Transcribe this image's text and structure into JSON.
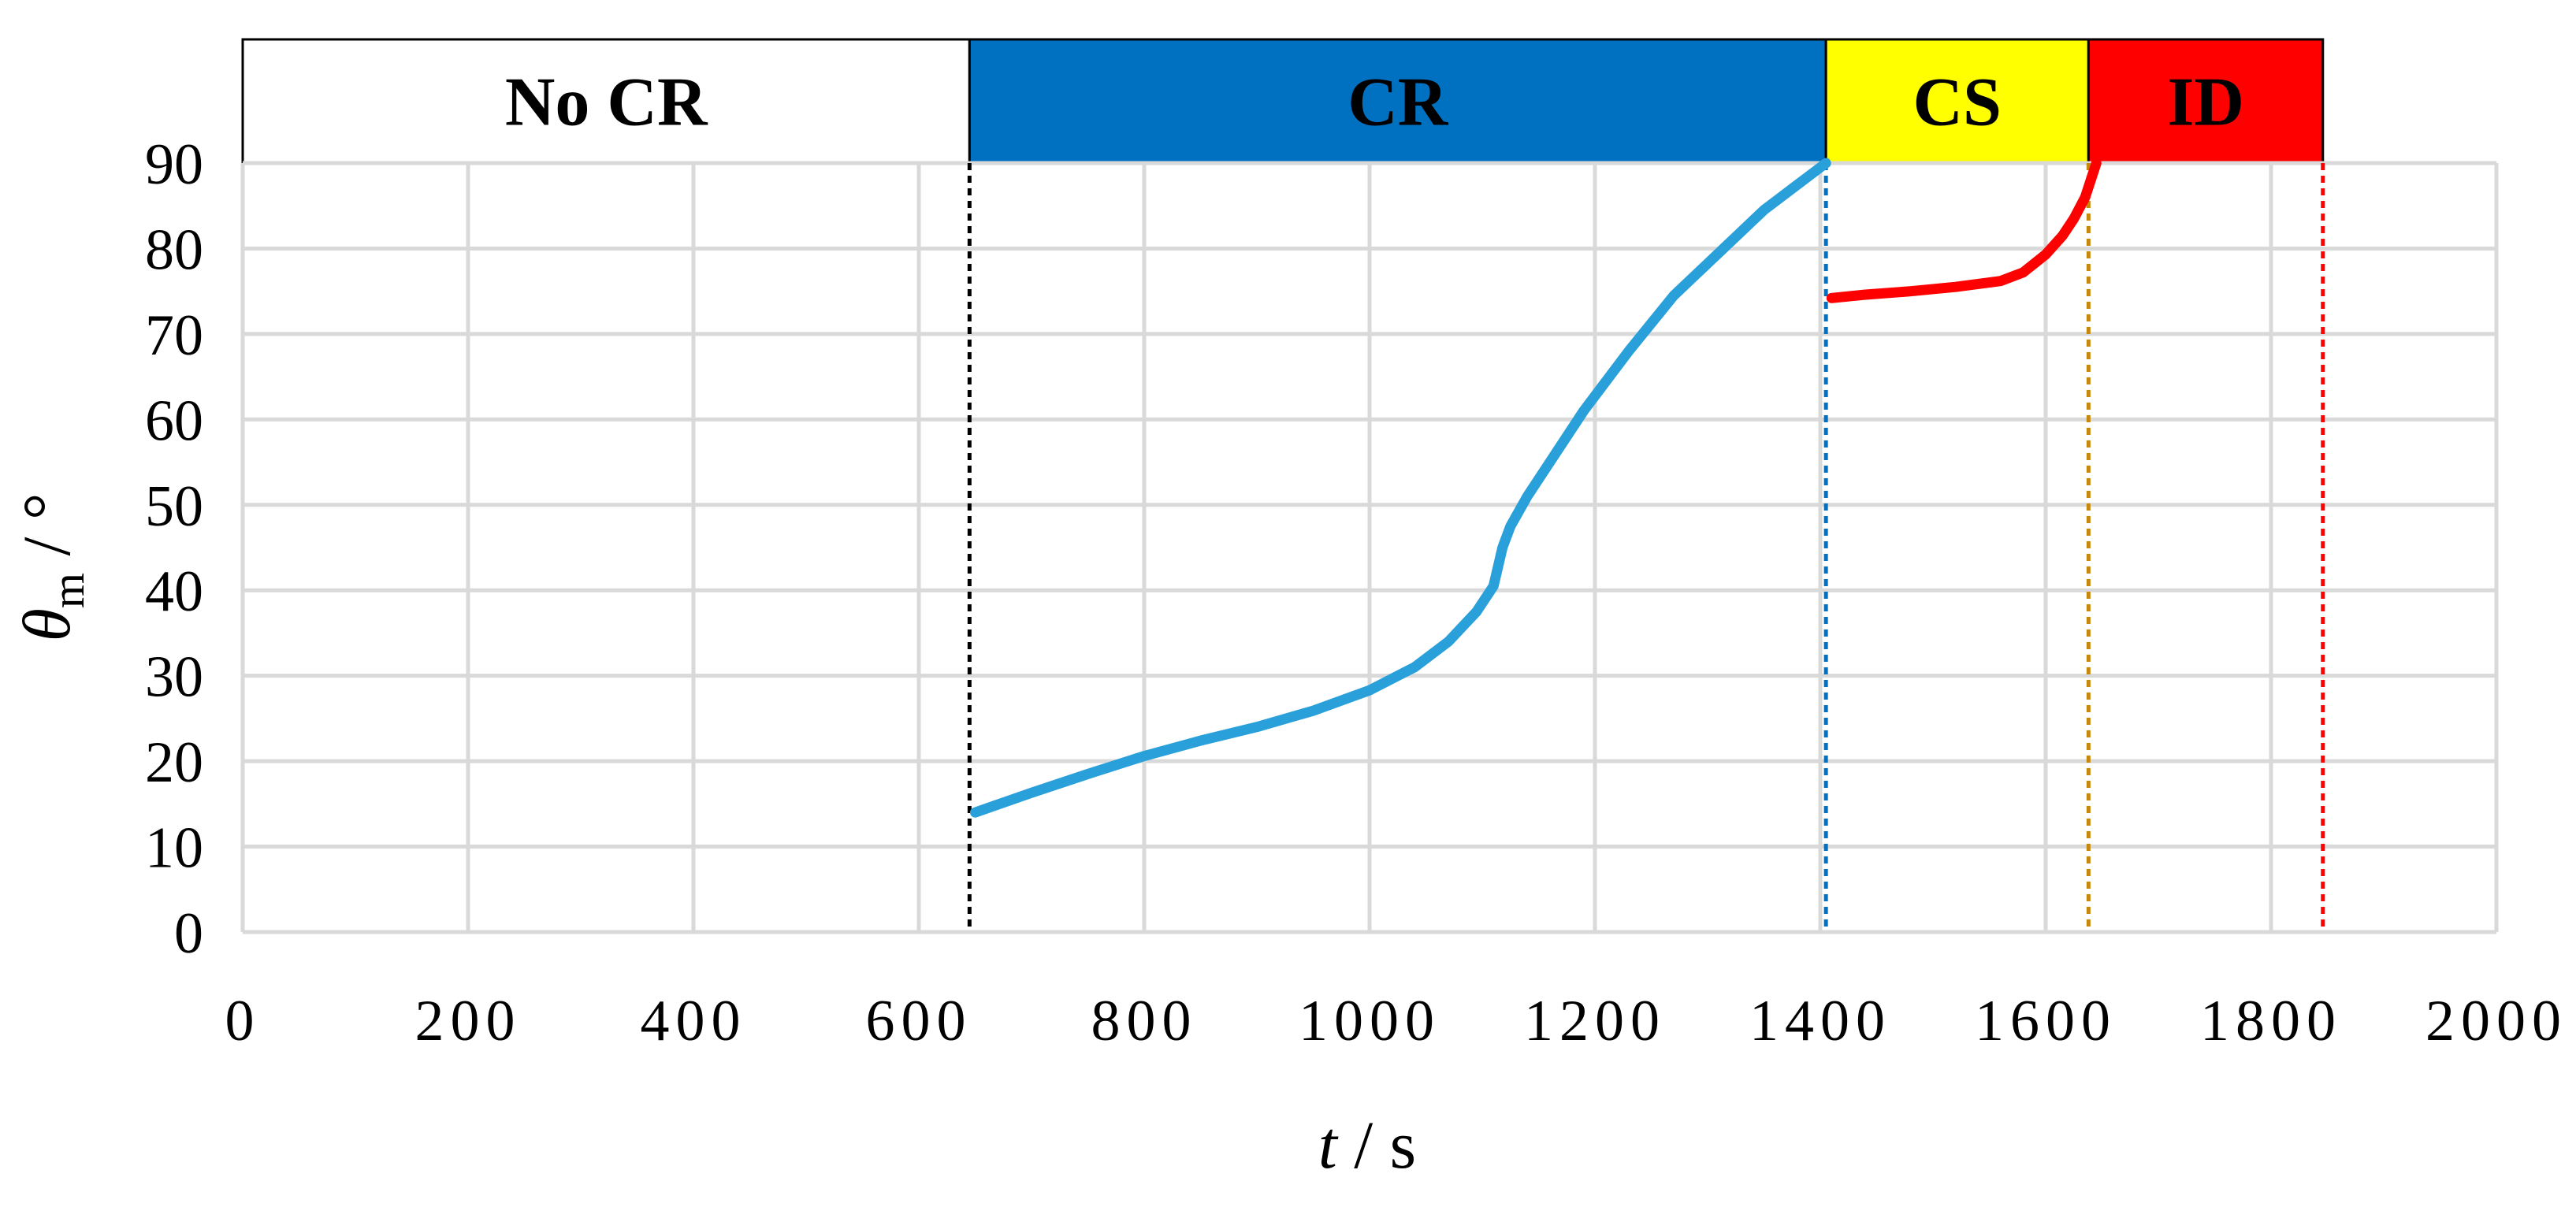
{
  "chart_data": {
    "type": "line",
    "xlabel": {
      "symbol": "t",
      "unit": " / s"
    },
    "ylabel": {
      "symbol": "θ",
      "subscript": "m",
      "unit": " / °"
    },
    "xlim": [
      0,
      2000
    ],
    "ylim": [
      0,
      90
    ],
    "xticks": [
      0,
      200,
      400,
      600,
      800,
      1000,
      1200,
      1400,
      1600,
      1800,
      2000
    ],
    "yticks": [
      0,
      10,
      20,
      30,
      40,
      50,
      60,
      70,
      80,
      90
    ],
    "grid": true,
    "regions": [
      {
        "label": "No CR",
        "start": 0,
        "end": 645,
        "color": "#ffffff",
        "text_color": "#000000"
      },
      {
        "label": "CR",
        "start": 645,
        "end": 1405,
        "color": "#0070c0",
        "text_color": "#000000"
      },
      {
        "label": "CS",
        "start": 1405,
        "end": 1638,
        "color": "#ffff00",
        "text_color": "#000000"
      },
      {
        "label": "ID",
        "start": 1638,
        "end": 1846,
        "color": "#ff0000",
        "text_color": "#000000"
      }
    ],
    "vlines": [
      {
        "x": 645,
        "color": "#000000"
      },
      {
        "x": 1405,
        "color": "#0070c0"
      },
      {
        "x": 1638,
        "color": "#c8860a"
      },
      {
        "x": 1846,
        "color": "#ff0000"
      }
    ],
    "series": [
      {
        "color": "#2aa0da",
        "x": [
          650,
          700,
          750,
          800,
          850,
          900,
          950,
          1000,
          1040,
          1070,
          1095,
          1110,
          1118,
          1125,
          1140,
          1160,
          1190,
          1230,
          1270,
          1310,
          1350,
          1380,
          1405
        ],
        "y": [
          14,
          16.3,
          18.5,
          20.6,
          22.4,
          24,
          25.9,
          28.3,
          31,
          34,
          37.5,
          40.5,
          45,
          47.5,
          51,
          55,
          61,
          68,
          74.5,
          79.5,
          84.5,
          87.5,
          90
        ]
      },
      {
        "color": "#ff0000",
        "x": [
          1410,
          1440,
          1480,
          1520,
          1560,
          1580,
          1600,
          1615,
          1625,
          1635,
          1645
        ],
        "y": [
          74.2,
          74.6,
          75,
          75.5,
          76.2,
          77.2,
          79.3,
          81.5,
          83.5,
          86,
          90
        ]
      }
    ]
  }
}
